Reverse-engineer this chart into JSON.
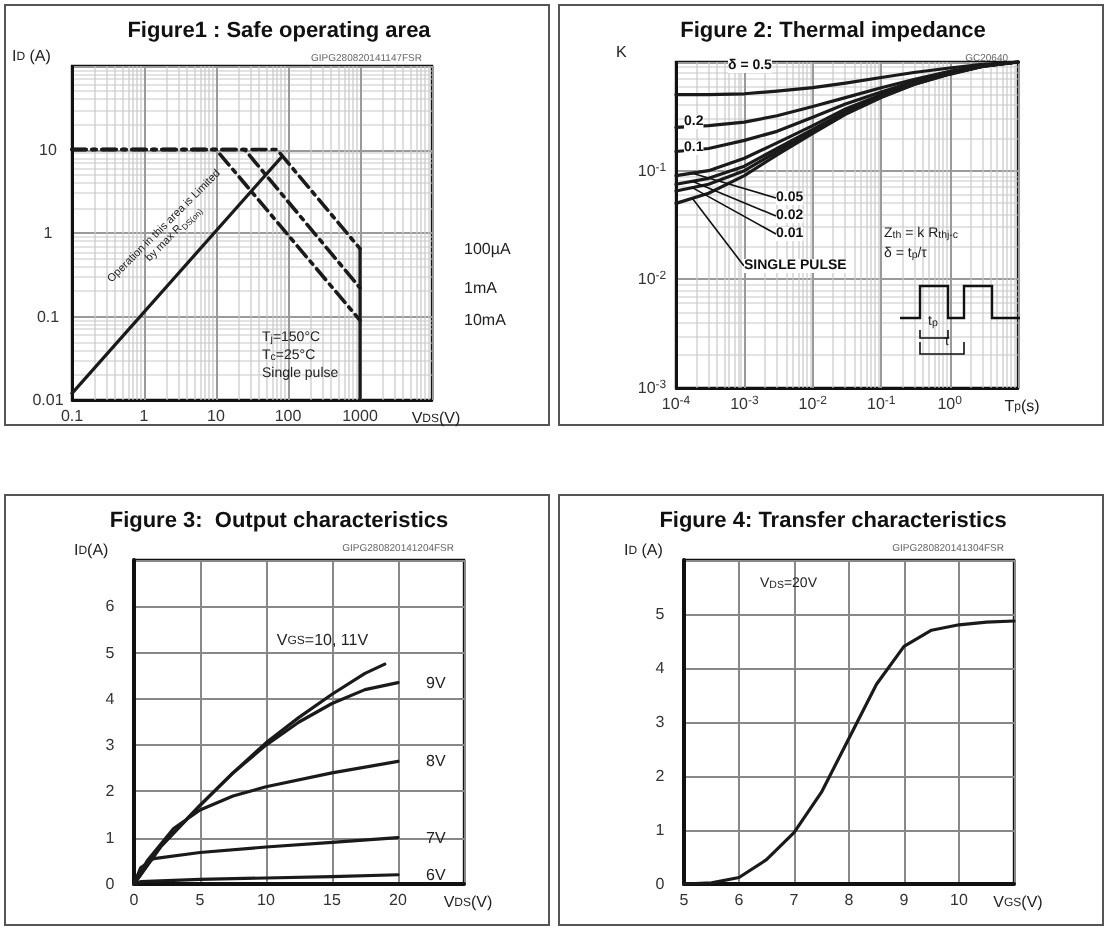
{
  "chart_data": [
    {
      "type": "line",
      "title": "Figure1 : Safe operating area",
      "subtitle": "GIPG280820141147FSR",
      "xlabel": "V$_{DS}$(V)",
      "ylabel": "I$_{D}$ (A)",
      "log": "xy",
      "xlim": [
        0.1,
        10000
      ],
      "ylim": [
        0.01,
        100
      ],
      "xticks": [
        0.1,
        1,
        10,
        100,
        1000,
        {
          "value": 10000,
          "label": null
        }
      ],
      "yticks": [
        0.01,
        0.1,
        1,
        10,
        {
          "value": 100,
          "label": null
        }
      ],
      "grid": true,
      "legend": false,
      "marker": "none",
      "series": [
        {
          "x": [
            0.1,
            80
          ],
          "values": [
            0.012,
            8
          ],
          "color": "#1a1a1a",
          "line_style": "solid"
        },
        {
          "name": "100µA",
          "x": [
            0.1,
            70,
            1000
          ],
          "values": [
            10,
            10,
            0.65
          ],
          "color": "#1a1a1a",
          "line_style": "dashed"
        },
        {
          "name": "1mA",
          "x": [
            0.1,
            25,
            1000
          ],
          "values": [
            10,
            10,
            0.22
          ],
          "color": "#1a1a1a",
          "line_style": "dashed"
        },
        {
          "name": "10mA",
          "x": [
            0.1,
            10,
            1000
          ],
          "values": [
            10,
            10,
            0.09
          ],
          "color": "#1a1a1a",
          "line_style": "dashed"
        },
        {
          "x": [
            1000,
            1000
          ],
          "values": [
            0.65,
            0.01
          ],
          "color": "#1a1a1a",
          "line_style": "solid"
        }
      ],
      "annotations": [
        "Operation in this area is Limited by max R$_{DS(on)}$",
        "T$_{j}$=150°C",
        "T$_{c}$=25°C",
        "Single pulse"
      ]
    },
    {
      "type": "line",
      "title": "Figure 2: Thermal impedance",
      "subtitle": "GC20640",
      "xlabel": "T$_{p}$(s)",
      "ylabel": "K",
      "log": "xy",
      "xlim": [
        0.0001,
        10
      ],
      "ylim": [
        0.001,
        1
      ],
      "xticks": [
        {
          "value": 0.0001,
          "label": "10$^{-4}$"
        },
        {
          "value": 0.001,
          "label": "10$^{-3}$"
        },
        {
          "value": 0.01,
          "label": "10$^{-2}$"
        },
        {
          "value": 0.1,
          "label": "10$^{-1}$"
        },
        {
          "value": 1,
          "label": "10$^{0}$"
        },
        {
          "value": 10,
          "label": null
        }
      ],
      "yticks": [
        {
          "value": 0.001,
          "label": "10$^{-3}$"
        },
        {
          "value": 0.01,
          "label": "10$^{-2}$"
        },
        {
          "value": 0.1,
          "label": "10$^{-1}$"
        },
        {
          "value": 1,
          "label": null
        }
      ],
      "grid": true,
      "legend": false,
      "marker": "none",
      "x": [
        0.0001,
        0.0003,
        0.001,
        0.003,
        0.01,
        0.03,
        0.1,
        0.3,
        1,
        3,
        10
      ],
      "series": [
        {
          "name": "δ = 0.5",
          "color": "#1a1a1a",
          "values": [
            0.5,
            0.5,
            0.51,
            0.54,
            0.58,
            0.64,
            0.72,
            0.8,
            0.88,
            0.95,
            1
          ]
        },
        {
          "name": "0.2",
          "color": "#1a1a1a",
          "values": [
            0.25,
            0.26,
            0.28,
            0.32,
            0.39,
            0.47,
            0.58,
            0.69,
            0.82,
            0.93,
            1
          ]
        },
        {
          "name": "0.1",
          "color": "#1a1a1a",
          "values": [
            0.15,
            0.16,
            0.19,
            0.23,
            0.31,
            0.41,
            0.53,
            0.66,
            0.8,
            0.92,
            1
          ]
        },
        {
          "name": "0.05",
          "color": "#1a1a1a",
          "values": [
            0.09,
            0.1,
            0.13,
            0.18,
            0.26,
            0.37,
            0.5,
            0.64,
            0.79,
            0.92,
            1
          ]
        },
        {
          "name": "0.02",
          "color": "#1a1a1a",
          "values": [
            0.075,
            0.085,
            0.11,
            0.16,
            0.24,
            0.35,
            0.49,
            0.63,
            0.78,
            0.91,
            1
          ]
        },
        {
          "name": "0.01",
          "color": "#1a1a1a",
          "values": [
            0.065,
            0.075,
            0.1,
            0.15,
            0.23,
            0.34,
            0.48,
            0.62,
            0.78,
            0.91,
            1
          ]
        },
        {
          "name": "SINGLE PULSE",
          "color": "#1a1a1a",
          "values": [
            0.05,
            0.062,
            0.09,
            0.14,
            0.22,
            0.33,
            0.47,
            0.62,
            0.77,
            0.91,
            1
          ]
        }
      ],
      "annotations": [
        "Z$_{th}$ = k R$_{thj-c}$",
        "δ = t$_{p}$/τ",
        "t$_{p}$",
        "τ"
      ]
    },
    {
      "type": "line",
      "title": "Figure 3:  Output characteristics",
      "subtitle": "GIPG280820141204FSR",
      "xlabel": "V$_{DS}$(V)",
      "ylabel": "I$_{D}$(A)",
      "xlim": [
        0,
        25
      ],
      "ylim": [
        0,
        7
      ],
      "xticks": [
        0,
        5,
        10,
        15,
        20,
        {
          "value": 25,
          "label": null
        }
      ],
      "yticks": [
        0,
        1,
        2,
        3,
        4,
        5,
        6,
        {
          "value": 7,
          "label": null
        }
      ],
      "grid": true,
      "legend": false,
      "marker": "none",
      "series": [
        {
          "name": "V$_{GS}$=10, 11V",
          "color": "#1a1a1a",
          "x": [
            0,
            2,
            5,
            7.5,
            10,
            12.5,
            15,
            17.5,
            19
          ],
          "values": [
            0,
            0.8,
            1.7,
            2.4,
            3.05,
            3.6,
            4.1,
            4.55,
            4.75
          ]
        },
        {
          "name": "9V",
          "color": "#1a1a1a",
          "x": [
            0,
            2,
            5,
            7.5,
            10,
            12.5,
            15,
            17.5,
            20
          ],
          "values": [
            0,
            0.8,
            1.7,
            2.4,
            3,
            3.5,
            3.9,
            4.2,
            4.35
          ]
        },
        {
          "name": "8V",
          "color": "#1a1a1a",
          "x": [
            0,
            1,
            3,
            5,
            7.5,
            10,
            15,
            20
          ],
          "values": [
            0,
            0.5,
            1.2,
            1.6,
            1.9,
            2.1,
            2.4,
            2.65
          ]
        },
        {
          "name": "7V",
          "color": "#1a1a1a",
          "x": [
            0,
            0.5,
            1.5,
            5,
            10,
            15,
            20
          ],
          "values": [
            0,
            0.35,
            0.55,
            0.68,
            0.8,
            0.9,
            1
          ]
        },
        {
          "name": "6V",
          "color": "#1a1a1a",
          "x": [
            0,
            0.5,
            5,
            10,
            15,
            20
          ],
          "values": [
            0,
            0.05,
            0.1,
            0.13,
            0.16,
            0.2
          ]
        }
      ]
    },
    {
      "type": "line",
      "title": "Figure 4: Transfer characteristics",
      "subtitle": "GIPG280820141304FSR",
      "xlabel": "V$_{GS}$(V)",
      "ylabel": "I$_{D}$ (A)",
      "xlim": [
        5,
        11
      ],
      "ylim": [
        0,
        6
      ],
      "xticks": [
        5,
        6,
        7,
        8,
        9,
        10,
        {
          "value": 11,
          "label": null
        }
      ],
      "yticks": [
        0,
        1,
        2,
        3,
        4,
        5,
        {
          "value": 6,
          "label": null
        }
      ],
      "grid": true,
      "legend": false,
      "marker": "none",
      "series": [
        {
          "color": "#1a1a1a",
          "x": [
            5,
            5.5,
            6,
            6.5,
            7,
            7.5,
            8,
            8.5,
            9,
            9.5,
            10,
            10.5,
            11
          ],
          "values": [
            0,
            0.02,
            0.12,
            0.45,
            0.95,
            1.7,
            2.7,
            3.7,
            4.4,
            4.7,
            4.8,
            4.85,
            4.87
          ]
        }
      ],
      "annotations": [
        "V$_{DS}$=20V"
      ]
    }
  ]
}
